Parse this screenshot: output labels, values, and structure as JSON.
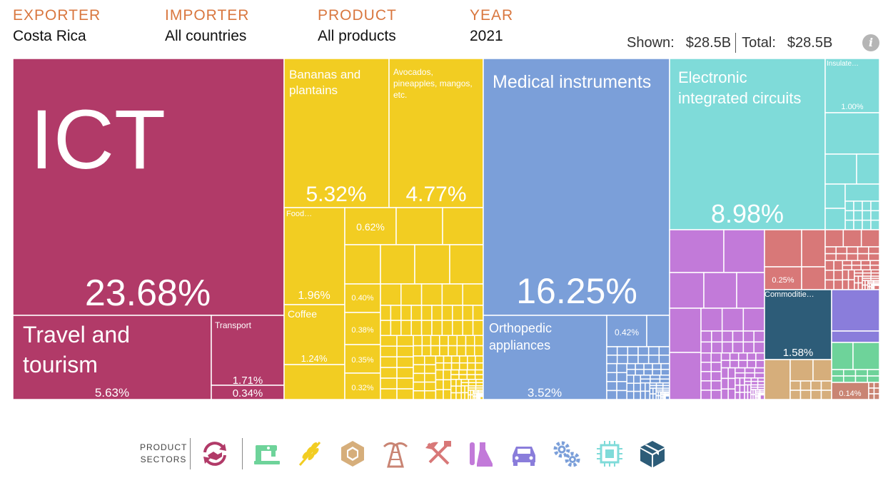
{
  "header": {
    "filters": [
      {
        "label": "EXPORTER",
        "value": "Costa Rica"
      },
      {
        "label": "IMPORTER",
        "value": "All countries"
      },
      {
        "label": "PRODUCT",
        "value": "All products"
      },
      {
        "label": "YEAR",
        "value": "2021"
      }
    ],
    "shown_label": "Shown:",
    "shown_value": "$28.5B",
    "total_label": "Total:",
    "total_value": "$28.5B",
    "info_glyph": "i"
  },
  "chart_data": {
    "type": "treemap",
    "title": "Costa Rica exports to All countries, All products, 2021",
    "unit": "share of total exports (%)",
    "labeled_tiles": [
      {
        "name": "ICT",
        "share_pct": 23.68,
        "sector": "Services",
        "color": "#b13a68"
      },
      {
        "name": "Travel and tourism",
        "share_pct": 5.63,
        "sector": "Services",
        "color": "#b13a68"
      },
      {
        "name": "Transport",
        "share_pct": 1.71,
        "sector": "Services",
        "color": "#b13a68"
      },
      {
        "name": "",
        "share_pct": 0.34,
        "sector": "Services",
        "color": "#b13a68"
      },
      {
        "name": "Bananas and plantains",
        "share_pct": 5.32,
        "sector": "Agriculture",
        "color": "#f2cd22"
      },
      {
        "name": "Avocados, pineapples, mangos, etc.",
        "share_pct": 4.77,
        "sector": "Agriculture",
        "color": "#f2cd22"
      },
      {
        "name": "Food…",
        "share_pct": 1.96,
        "sector": "Agriculture",
        "color": "#f2cd22"
      },
      {
        "name": "Coffee",
        "share_pct": 1.24,
        "sector": "Agriculture",
        "color": "#f2cd22"
      },
      {
        "name": "",
        "share_pct": 0.62,
        "sector": "Agriculture",
        "color": "#f2cd22"
      },
      {
        "name": "",
        "share_pct": 0.4,
        "sector": "Agriculture",
        "color": "#f2cd22"
      },
      {
        "name": "",
        "share_pct": 0.38,
        "sector": "Agriculture",
        "color": "#f2cd22"
      },
      {
        "name": "",
        "share_pct": 0.35,
        "sector": "Agriculture",
        "color": "#f2cd22"
      },
      {
        "name": "",
        "share_pct": 0.32,
        "sector": "Agriculture",
        "color": "#f2cd22"
      },
      {
        "name": "Medical instruments",
        "share_pct": 16.25,
        "sector": "Machinery",
        "color": "#7b9fd9"
      },
      {
        "name": "Orthopedic appliances",
        "share_pct": 3.52,
        "sector": "Machinery",
        "color": "#7b9fd9"
      },
      {
        "name": "",
        "share_pct": 0.42,
        "sector": "Machinery",
        "color": "#7b9fd9"
      },
      {
        "name": "Electronic integrated circuits",
        "share_pct": 8.98,
        "sector": "Electronics",
        "color": "#7fdbd9"
      },
      {
        "name": "Insulate…",
        "share_pct": 1.0,
        "sector": "Electronics",
        "color": "#7fdbd9"
      },
      {
        "name": "",
        "share_pct": 0.25,
        "sector": "Metals",
        "color": "#d87878"
      },
      {
        "name": "Commoditie…",
        "share_pct": 1.58,
        "sector": "Other",
        "color": "#2d5c78"
      },
      {
        "name": "",
        "share_pct": 0.14,
        "sector": "Other",
        "color": "#d6ae7b"
      }
    ],
    "legend_title": "PRODUCT SECTORS",
    "legend": [
      {
        "name": "services-icon",
        "color": "#b13a68"
      },
      {
        "name": "textiles-icon",
        "color": "#6ed39a"
      },
      {
        "name": "agriculture-icon",
        "color": "#f2cd22"
      },
      {
        "name": "stone-icon",
        "color": "#d6ae7b"
      },
      {
        "name": "minerals-icon",
        "color": "#c98473"
      },
      {
        "name": "metals-icon",
        "color": "#d87878"
      },
      {
        "name": "chemicals-icon",
        "color": "#c27ad9"
      },
      {
        "name": "vehicles-icon",
        "color": "#8a7ddb"
      },
      {
        "name": "machinery-icon",
        "color": "#7b9fd9"
      },
      {
        "name": "electronics-icon",
        "color": "#7fdbd9"
      },
      {
        "name": "other-icon",
        "color": "#2d5c78"
      }
    ]
  },
  "legend_label_line1": "PRODUCT",
  "legend_label_line2": "SECTORS"
}
